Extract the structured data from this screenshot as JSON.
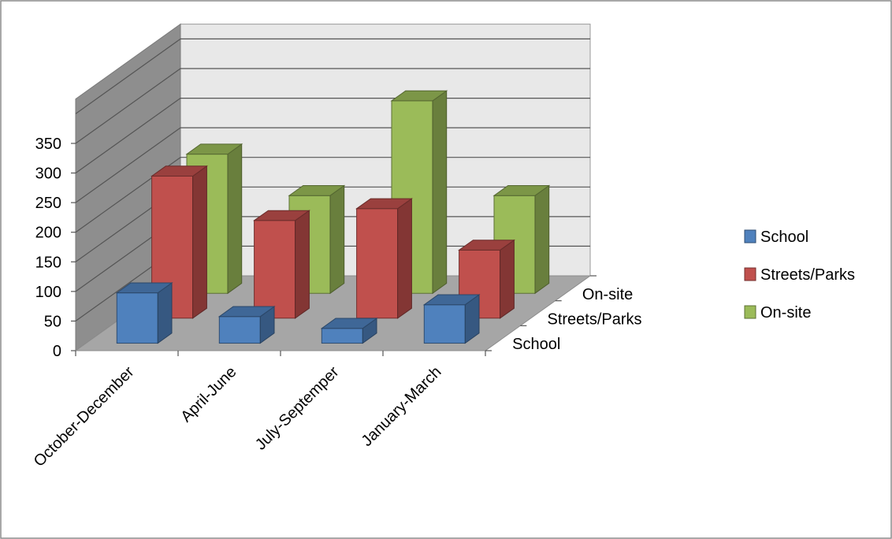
{
  "chart_data": {
    "type": "bar",
    "subtype": "3d-column",
    "title": "",
    "xlabel": "",
    "ylabel": "",
    "ylim": [
      0,
      350
    ],
    "yticks": [
      0,
      50,
      100,
      150,
      200,
      250,
      300,
      350
    ],
    "grid": true,
    "legend_position": "right",
    "categories": [
      "October-December",
      "April-June",
      "July-Septemper",
      "January-March"
    ],
    "series": [
      {
        "name": "School",
        "values": [
          85,
          45,
          25,
          65
        ],
        "color": "#4F81BD"
      },
      {
        "name": "Streets/Parks",
        "values": [
          240,
          165,
          185,
          115
        ],
        "color": "#C0504D"
      },
      {
        "name": "On-site",
        "values": [
          235,
          165,
          325,
          165
        ],
        "color": "#9BBB59"
      }
    ]
  }
}
